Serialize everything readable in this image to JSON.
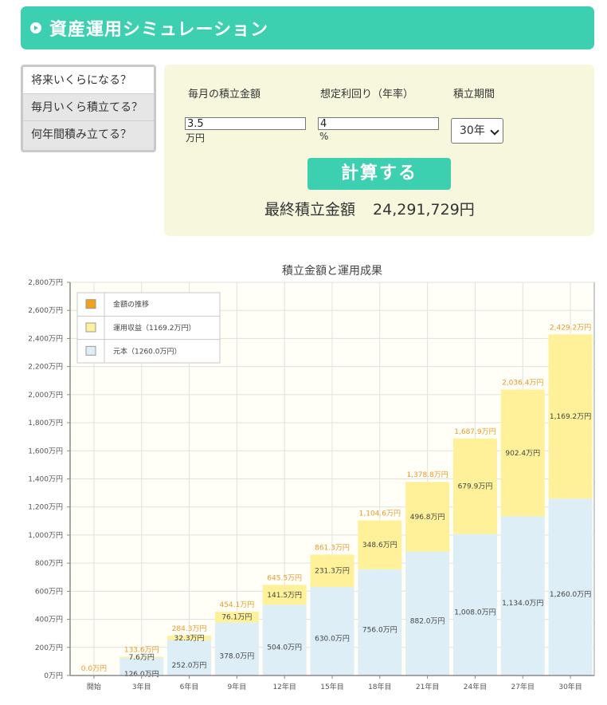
{
  "header": {
    "title": "資産運用シミュレーション"
  },
  "modes": [
    {
      "label": "将来いくらになる？",
      "active": true
    },
    {
      "label": "毎月いくら積立てる？",
      "active": false
    },
    {
      "label": "何年間積み立てる？",
      "active": false
    }
  ],
  "form": {
    "monthly_label": "毎月の積立金額",
    "monthly_value": "3.5",
    "monthly_unit": "万円",
    "rate_label": "想定利回り（年率）",
    "rate_value": "4",
    "rate_unit": "%",
    "period_label": "積立期間",
    "period_value": "30年",
    "calc_button": "計算する",
    "result_label": "最終積立金額",
    "result_value": "24,291,729円"
  },
  "colors": {
    "accent": "#3ccfb0",
    "form_bg": "#f6f7dc",
    "principal": "#ddeef7",
    "gain": "#fff19a",
    "total_label": "#ee9a2b"
  },
  "chart_data": {
    "type": "bar",
    "stacked": true,
    "title": "積立金額と運用成果",
    "categories": [
      "開始",
      "3年目",
      "6年目",
      "9年目",
      "12年目",
      "15年目",
      "18年目",
      "21年目",
      "24年目",
      "27年目",
      "30年目"
    ],
    "y_ticks": [
      "0万円",
      "200万円",
      "400万円",
      "600万円",
      "800万円",
      "1,000万円",
      "1,200万円",
      "1,400万円",
      "1,600万円",
      "1,800万円",
      "2,000万円",
      "2,200万円",
      "2,400万円",
      "2,600万円",
      "2,800万円"
    ],
    "ylim": [
      0,
      2800
    ],
    "legend_position": "top-left",
    "legend": [
      {
        "label": "金額の推移",
        "color": "#f0a31a"
      },
      {
        "label": "運用収益（1169.2万円）",
        "color": "#fff19a"
      },
      {
        "label": "元本（1260.0万円）",
        "color": "#ddeef7"
      }
    ],
    "series": [
      {
        "name": "元本（1260.0万円）",
        "values": [
          0,
          126.0,
          252.0,
          378.0,
          504.0,
          630.0,
          756.0,
          882.0,
          1008.0,
          1134.0,
          1260.0
        ],
        "labels": [
          "",
          "126.0万円",
          "252.0万円",
          "378.0万円",
          "504.0万円",
          "630.0万円",
          "756.0万円",
          "882.0万円",
          "1,008.0万円",
          "1,134.0万円",
          "1,260.0万円"
        ]
      },
      {
        "name": "運用収益（1169.2万円）",
        "values": [
          0,
          7.6,
          32.3,
          76.1,
          141.5,
          231.3,
          348.6,
          496.8,
          679.9,
          902.4,
          1169.2
        ],
        "labels": [
          "",
          "7.6万円",
          "32.3万円",
          "76.1万円",
          "141.5万円",
          "231.3万円",
          "348.6万円",
          "496.8万円",
          "679.9万円",
          "902.4万円",
          "1,169.2万円"
        ]
      }
    ],
    "totals": {
      "name": "金額の推移",
      "values": [
        0,
        133.6,
        284.3,
        454.1,
        645.5,
        861.3,
        1104.6,
        1378.8,
        1687.9,
        2036.4,
        2429.2
      ],
      "labels": [
        "0.0万円",
        "133.6万円",
        "284.3万円",
        "454.1万円",
        "645.5万円",
        "861.3万円",
        "1,104.6万円",
        "1,378.8万円",
        "1,687.9万円",
        "2,036.4万円",
        "2,429.2万円"
      ]
    }
  }
}
